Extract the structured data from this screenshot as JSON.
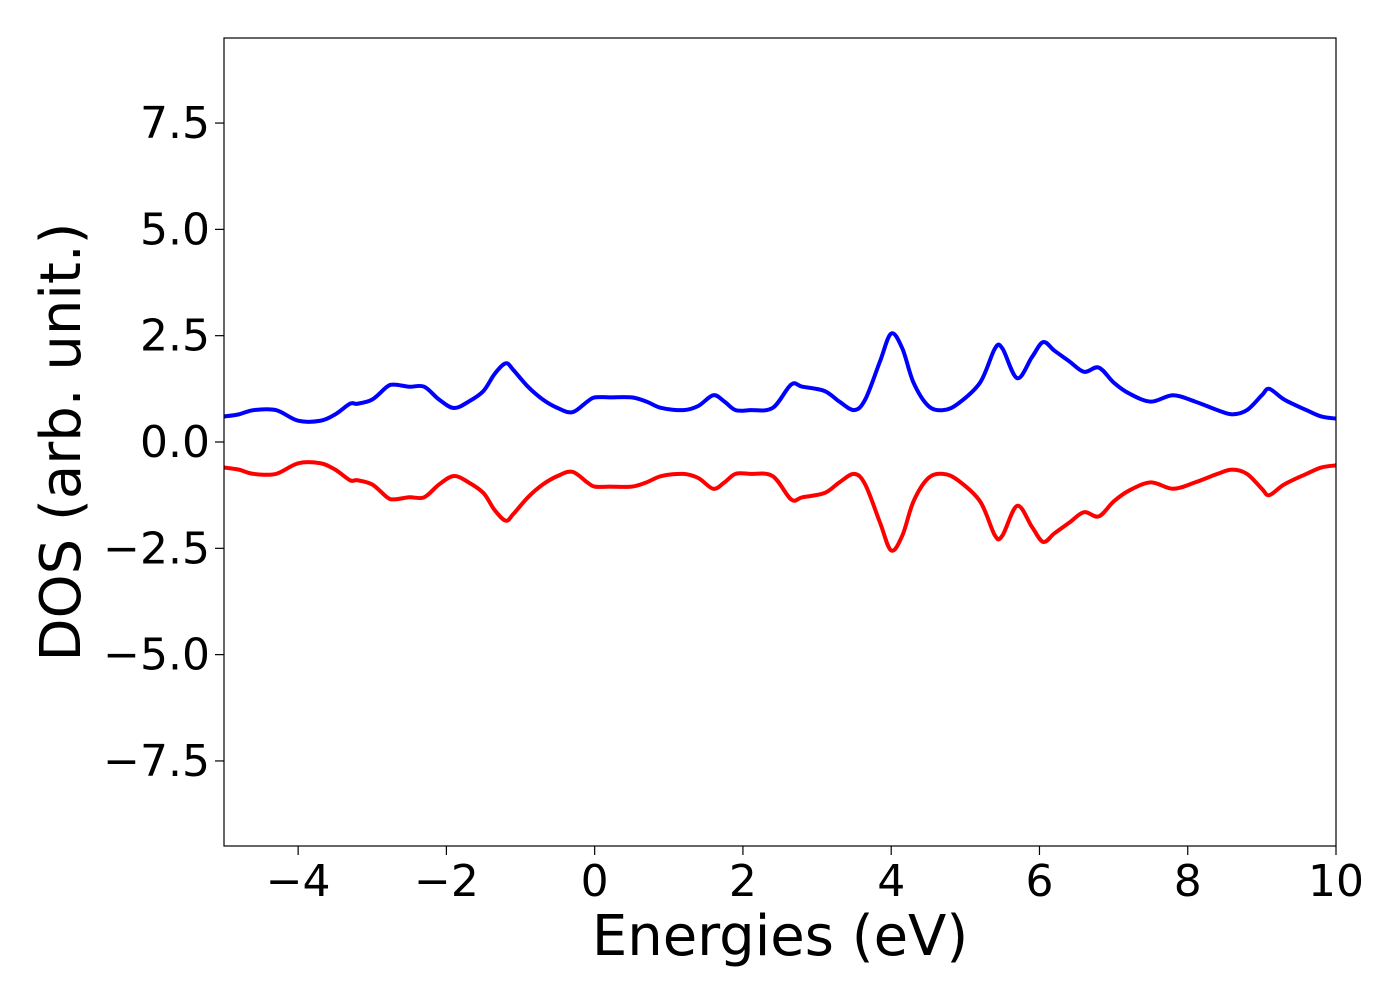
{
  "chart_data": {
    "type": "line",
    "xlabel": "Energies (eV)",
    "ylabel": "DOS (arb. unit.)",
    "xlim": [
      -5,
      10
    ],
    "ylim": [
      -9.5,
      9.5
    ],
    "xticks": [
      -4,
      -2,
      0,
      2,
      4,
      6,
      8,
      10
    ],
    "xtick_labels": [
      "−4",
      "−2",
      "0",
      "2",
      "4",
      "6",
      "8",
      "10"
    ],
    "yticks": [
      7.5,
      5.0,
      2.5,
      0.0,
      -2.5,
      -5.0,
      -7.5
    ],
    "ytick_labels": [
      "7.5",
      "5.0",
      "2.5",
      "0.0",
      "−2.5",
      "−5.0",
      "−7.5"
    ],
    "grid": false,
    "series": [
      {
        "color": "#0000ff",
        "x": [
          -5.0,
          -4.8,
          -4.6,
          -4.3,
          -4.0,
          -3.7,
          -3.5,
          -3.3,
          -3.2,
          -3.0,
          -2.8,
          -2.7,
          -2.5,
          -2.3,
          -2.1,
          -1.9,
          -1.7,
          -1.5,
          -1.35,
          -1.2,
          -1.1,
          -0.9,
          -0.7,
          -0.5,
          -0.3,
          -0.1,
          0.0,
          0.2,
          0.5,
          0.7,
          0.9,
          1.2,
          1.4,
          1.6,
          1.75,
          1.9,
          2.1,
          2.4,
          2.65,
          2.8,
          3.1,
          3.3,
          3.5,
          3.65,
          3.85,
          4.0,
          4.15,
          4.3,
          4.5,
          4.7,
          4.9,
          5.2,
          5.4,
          5.5,
          5.7,
          5.9,
          6.05,
          6.2,
          6.4,
          6.6,
          6.8,
          7.0,
          7.2,
          7.5,
          7.8,
          8.1,
          8.4,
          8.6,
          8.8,
          9.0,
          9.1,
          9.3,
          9.6,
          9.8,
          10.0
        ],
        "y": [
          0.6,
          0.65,
          0.75,
          0.75,
          0.5,
          0.5,
          0.65,
          0.9,
          0.9,
          1.0,
          1.3,
          1.35,
          1.3,
          1.3,
          1.0,
          0.8,
          0.95,
          1.2,
          1.6,
          1.85,
          1.7,
          1.3,
          1.0,
          0.8,
          0.7,
          0.95,
          1.05,
          1.05,
          1.05,
          0.95,
          0.8,
          0.75,
          0.85,
          1.1,
          0.95,
          0.75,
          0.75,
          0.8,
          1.35,
          1.3,
          1.2,
          0.95,
          0.75,
          1.0,
          1.9,
          2.55,
          2.2,
          1.4,
          0.85,
          0.75,
          0.9,
          1.4,
          2.2,
          2.2,
          1.5,
          2.0,
          2.35,
          2.15,
          1.9,
          1.65,
          1.75,
          1.4,
          1.15,
          0.95,
          1.1,
          0.95,
          0.75,
          0.65,
          0.75,
          1.1,
          1.25,
          1.0,
          0.75,
          0.6,
          0.55
        ]
      },
      {
        "color": "#ff0000",
        "x": [
          -5.0,
          -4.8,
          -4.6,
          -4.3,
          -4.0,
          -3.7,
          -3.5,
          -3.3,
          -3.2,
          -3.0,
          -2.8,
          -2.7,
          -2.5,
          -2.3,
          -2.1,
          -1.9,
          -1.7,
          -1.5,
          -1.35,
          -1.2,
          -1.1,
          -0.9,
          -0.7,
          -0.5,
          -0.3,
          -0.1,
          0.0,
          0.2,
          0.5,
          0.7,
          0.9,
          1.2,
          1.4,
          1.6,
          1.75,
          1.9,
          2.1,
          2.4,
          2.65,
          2.8,
          3.1,
          3.3,
          3.5,
          3.65,
          3.85,
          4.0,
          4.15,
          4.3,
          4.5,
          4.7,
          4.9,
          5.2,
          5.4,
          5.5,
          5.7,
          5.9,
          6.05,
          6.2,
          6.4,
          6.6,
          6.8,
          7.0,
          7.2,
          7.5,
          7.8,
          8.1,
          8.4,
          8.6,
          8.8,
          9.0,
          9.1,
          9.3,
          9.6,
          9.8,
          10.0
        ],
        "y": [
          -0.6,
          -0.65,
          -0.75,
          -0.75,
          -0.5,
          -0.5,
          -0.65,
          -0.9,
          -0.9,
          -1.0,
          -1.3,
          -1.35,
          -1.3,
          -1.3,
          -1.0,
          -0.8,
          -0.95,
          -1.2,
          -1.6,
          -1.85,
          -1.7,
          -1.3,
          -1.0,
          -0.8,
          -0.7,
          -0.95,
          -1.05,
          -1.05,
          -1.05,
          -0.95,
          -0.8,
          -0.75,
          -0.85,
          -1.1,
          -0.95,
          -0.75,
          -0.75,
          -0.8,
          -1.35,
          -1.3,
          -1.2,
          -0.95,
          -0.75,
          -1.0,
          -1.9,
          -2.55,
          -2.2,
          -1.4,
          -0.85,
          -0.75,
          -0.9,
          -1.4,
          -2.2,
          -2.2,
          -1.5,
          -2.0,
          -2.35,
          -2.15,
          -1.9,
          -1.65,
          -1.75,
          -1.4,
          -1.15,
          -0.95,
          -1.1,
          -0.95,
          -0.75,
          -0.65,
          -0.75,
          -1.1,
          -1.25,
          -1.0,
          -0.75,
          -0.6,
          -0.55
        ]
      }
    ]
  }
}
